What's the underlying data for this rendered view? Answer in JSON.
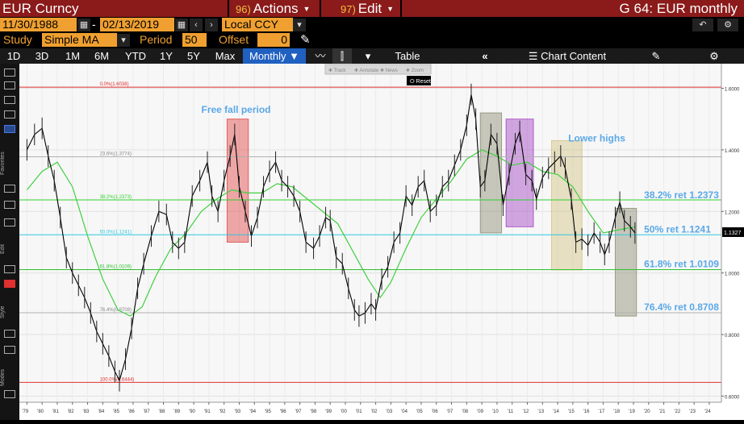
{
  "toolbar_top": {
    "security": "EUR Curncy",
    "actions_num": "96)",
    "actions_label": "Actions",
    "edit_num": "97)",
    "edit_label": "Edit",
    "page_title": "G 64: EUR monthly"
  },
  "toolbar_date": {
    "start_date": "11/30/1988",
    "separator": "-",
    "end_date": "02/13/2019",
    "currency": "Local CCY"
  },
  "toolbar_study": {
    "study_label": "Study",
    "study_value": "Simple MA",
    "period_label": "Period",
    "period_value": "50",
    "offset_label": "Offset",
    "offset_value": "0"
  },
  "toolbar_range": {
    "ranges": [
      "1D",
      "3D",
      "1M",
      "6M",
      "YTD",
      "1Y",
      "5Y",
      "Max"
    ],
    "frequency": "Monthly",
    "table_label": "Table",
    "chart_content_label": "Chart Content"
  },
  "annotate_toolbar": {
    "items": [
      "Track",
      "Annotate",
      "News",
      "Zoom"
    ],
    "reset_label": "Reset"
  },
  "sidebar": {
    "labels": [
      "Favorites",
      "Edit",
      "Style",
      "Modes"
    ]
  },
  "chart_data": {
    "type": "line",
    "y_ticks": [
      "1.6000",
      "1.4000",
      "1.2000",
      "1.0000",
      "0.8000",
      "0.6000"
    ],
    "ylim": [
      0.58,
      1.68
    ],
    "x_ticks": [
      "'79",
      "'80",
      "'81",
      "'82",
      "'83",
      "'84",
      "'85",
      "'86",
      "'87",
      "'88",
      "'89",
      "'90",
      "'91",
      "'92",
      "'93",
      "'94",
      "'95",
      "'96",
      "'97",
      "'98",
      "'99",
      "'00",
      "'01",
      "'02",
      "'03",
      "'04",
      "'05",
      "'06",
      "'07",
      "'08",
      "'09",
      "'10",
      "'11",
      "'12",
      "'13",
      "'14",
      "'15",
      "'16",
      "'17",
      "'18",
      "'19",
      "'20",
      "'21",
      "'22",
      "'23",
      "'24"
    ],
    "last_price": "1.1327",
    "last_value": 1.1327,
    "fib_levels": [
      {
        "label": "0.0%(1.6038)",
        "value": 1.6038,
        "color": "#e03030"
      },
      {
        "label": "23.6%(1.3774)",
        "value": 1.3774,
        "color": "#b0b0b0"
      },
      {
        "label": "38.2%(1.2373)",
        "value": 1.2373,
        "color": "#30d030"
      },
      {
        "label": "50.0%(1.1241)",
        "value": 1.1241,
        "color": "#30c8e0"
      },
      {
        "label": "61.8%(1.0109)",
        "value": 1.0109,
        "color": "#30c030"
      },
      {
        "label": "76.4%(0.8708)",
        "value": 0.8708,
        "color": "#b0b0b0"
      },
      {
        "label": "100.0%(0.6444)",
        "value": 0.6444,
        "color": "#e03030"
      }
    ],
    "annotations": {
      "free_fall": "Free fall period",
      "lower_highs": "Lower highs",
      "ret_382": "38.2% ret 1.2373",
      "ret_50": "50% ret 1.1241",
      "ret_618": "61.8% ret 1.0109",
      "ret_764": "76.4% ret 0.8708"
    },
    "highlight_boxes": [
      {
        "name": "free-fall-box",
        "x0": 1992.2,
        "x1": 1993.6,
        "y0": 1.1,
        "y1": 1.5,
        "color": "#e04040"
      },
      {
        "name": "box-2009",
        "x0": 2008.9,
        "x1": 2010.3,
        "y0": 1.13,
        "y1": 1.52,
        "color": "#8a8a70"
      },
      {
        "name": "box-2011",
        "x0": 2010.6,
        "x1": 2012.4,
        "y0": 1.15,
        "y1": 1.5,
        "color": "#a040c0"
      },
      {
        "name": "box-2014",
        "x0": 2013.6,
        "x1": 2015.6,
        "y0": 1.01,
        "y1": 1.43,
        "color": "#d0c080"
      },
      {
        "name": "box-2018",
        "x0": 2017.8,
        "x1": 2019.2,
        "y0": 0.86,
        "y1": 1.21,
        "color": "#8a8a70"
      }
    ],
    "series": [
      {
        "name": "EUR",
        "x": [
          1979.0,
          1979.5,
          1980.0,
          1980.4,
          1980.8,
          1981.2,
          1981.6,
          1982.0,
          1982.4,
          1982.8,
          1983.2,
          1983.6,
          1984.0,
          1984.4,
          1984.8,
          1985.1,
          1985.5,
          1985.9,
          1986.3,
          1986.7,
          1987.2,
          1987.7,
          1988.2,
          1988.6,
          1989.0,
          1989.4,
          1989.9,
          1990.4,
          1990.9,
          1991.2,
          1991.6,
          1992.0,
          1992.4,
          1992.7,
          1993.0,
          1993.4,
          1993.8,
          1994.2,
          1994.6,
          1995.0,
          1995.4,
          1995.8,
          1996.2,
          1996.6,
          1997.0,
          1997.4,
          1997.9,
          1998.3,
          1998.7,
          1999.0,
          1999.4,
          1999.8,
          2000.2,
          2000.6,
          2000.9,
          2001.3,
          2001.7,
          2002.0,
          2002.4,
          2002.8,
          2003.2,
          2003.6,
          2004.0,
          2004.4,
          2004.8,
          2005.2,
          2005.6,
          2006.0,
          2006.4,
          2006.8,
          2007.2,
          2007.6,
          2008.0,
          2008.3,
          2008.6,
          2008.9,
          2009.2,
          2009.6,
          2010.0,
          2010.4,
          2010.8,
          2011.2,
          2011.5,
          2011.9,
          2012.3,
          2012.6,
          2013.0,
          2013.4,
          2013.8,
          2014.2,
          2014.5,
          2014.9,
          2015.2,
          2015.6,
          2016.0,
          2016.4,
          2016.8,
          2017.1,
          2017.4,
          2017.8,
          2018.1,
          2018.4,
          2018.8,
          2019.1
        ],
        "values": [
          1.4,
          1.45,
          1.47,
          1.38,
          1.3,
          1.18,
          1.05,
          1.0,
          0.96,
          0.92,
          0.87,
          0.81,
          0.77,
          0.73,
          0.68,
          0.65,
          0.72,
          0.82,
          0.95,
          1.03,
          1.12,
          1.2,
          1.19,
          1.1,
          1.08,
          1.1,
          1.25,
          1.3,
          1.36,
          1.25,
          1.2,
          1.3,
          1.38,
          1.45,
          1.28,
          1.2,
          1.12,
          1.18,
          1.28,
          1.33,
          1.36,
          1.3,
          1.28,
          1.25,
          1.2,
          1.1,
          1.08,
          1.12,
          1.18,
          1.17,
          1.05,
          1.03,
          0.95,
          0.88,
          0.86,
          0.87,
          0.9,
          0.88,
          0.98,
          1.02,
          1.1,
          1.13,
          1.25,
          1.22,
          1.28,
          1.3,
          1.2,
          1.22,
          1.28,
          1.3,
          1.35,
          1.4,
          1.48,
          1.58,
          1.5,
          1.28,
          1.3,
          1.45,
          1.42,
          1.22,
          1.32,
          1.42,
          1.46,
          1.32,
          1.3,
          1.24,
          1.31,
          1.34,
          1.36,
          1.38,
          1.34,
          1.24,
          1.1,
          1.11,
          1.09,
          1.13,
          1.1,
          1.06,
          1.1,
          1.18,
          1.23,
          1.17,
          1.15,
          1.13
        ],
        "color": "#000000"
      },
      {
        "name": "SMA 50",
        "x": [
          1979.0,
          1980.0,
          1981.0,
          1982.0,
          1983.0,
          1984.0,
          1985.0,
          1985.8,
          1986.6,
          1987.5,
          1988.5,
          1989.5,
          1990.5,
          1991.5,
          1992.5,
          1993.5,
          1994.5,
          1995.5,
          1996.5,
          1997.5,
          1998.5,
          1999.5,
          2000.5,
          2001.5,
          2002.3,
          2003.0,
          2004.0,
          2005.0,
          2006.0,
          2007.0,
          2008.0,
          2009.0,
          2010.0,
          2011.0,
          2012.0,
          2013.0,
          2014.0,
          2015.0,
          2016.0,
          2017.0,
          2018.0,
          2019.1
        ],
        "values": [
          1.27,
          1.33,
          1.36,
          1.28,
          1.12,
          0.98,
          0.88,
          0.86,
          0.89,
          0.99,
          1.08,
          1.13,
          1.2,
          1.24,
          1.27,
          1.26,
          1.26,
          1.29,
          1.28,
          1.24,
          1.2,
          1.16,
          1.07,
          0.98,
          0.92,
          0.97,
          1.08,
          1.18,
          1.24,
          1.3,
          1.37,
          1.4,
          1.38,
          1.35,
          1.36,
          1.33,
          1.32,
          1.28,
          1.2,
          1.13,
          1.14,
          1.15
        ],
        "color": "#40d040"
      }
    ]
  }
}
